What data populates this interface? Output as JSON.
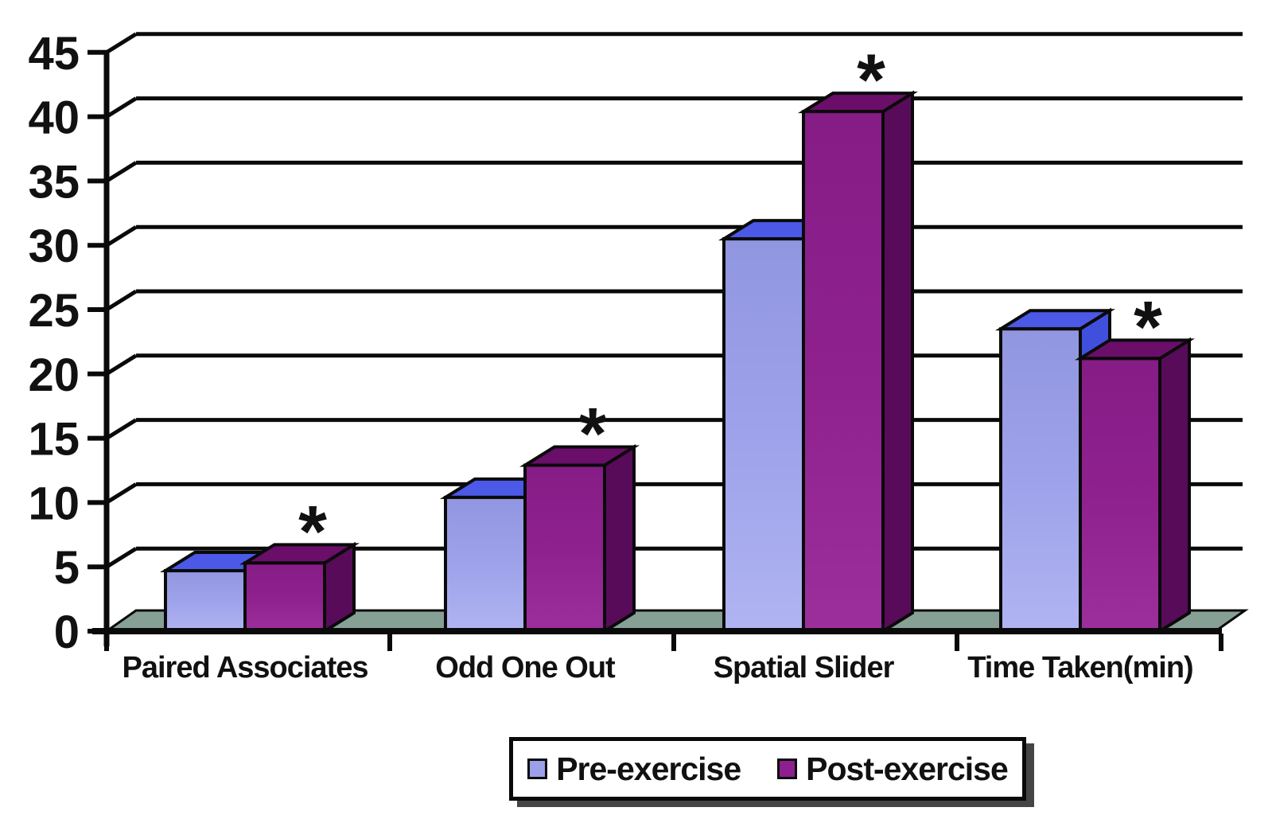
{
  "chart_data": {
    "type": "bar",
    "style": "3d-clustered",
    "title": "",
    "xlabel": "",
    "ylabel": "",
    "ylim": [
      0,
      45
    ],
    "yticks": [
      0,
      5,
      10,
      15,
      20,
      25,
      30,
      35,
      40,
      45
    ],
    "grid": true,
    "legend_position": "bottom",
    "categories": [
      "Paired Associates",
      "Odd One Out",
      "Spatial Slider",
      "Time Taken(min)"
    ],
    "series": [
      {
        "name": "Pre-exercise",
        "values": [
          4.7,
          10.4,
          30.5,
          23.5
        ],
        "front_color": "#9BA0E9",
        "top_color": "#4B59E6",
        "side_color": "#4050DC"
      },
      {
        "name": "Post-exercise",
        "values": [
          5.3,
          12.9,
          40.4,
          21.2
        ],
        "front_color": "#8E1F8E",
        "top_color": "#6A0E6A",
        "side_color": "#580B58"
      }
    ],
    "significance_markers": [
      {
        "category": "Paired Associates",
        "series": "Post-exercise",
        "symbol": "*"
      },
      {
        "category": "Odd One Out",
        "series": "Post-exercise",
        "symbol": "*"
      },
      {
        "category": "Spatial Slider",
        "series": "Post-exercise",
        "symbol": "*"
      },
      {
        "category": "Time Taken(min)",
        "series": "Post-exercise",
        "symbol": "*"
      }
    ],
    "colors": {
      "floor": "#87A096",
      "line": "#0a0a0a",
      "text": "#111111",
      "background": "#ffffff"
    }
  },
  "legend": {
    "items": [
      {
        "label": "Pre-exercise",
        "swatch_color": "#9BA0E9"
      },
      {
        "label": "Post-exercise",
        "swatch_color": "#8E1F8E"
      }
    ]
  }
}
